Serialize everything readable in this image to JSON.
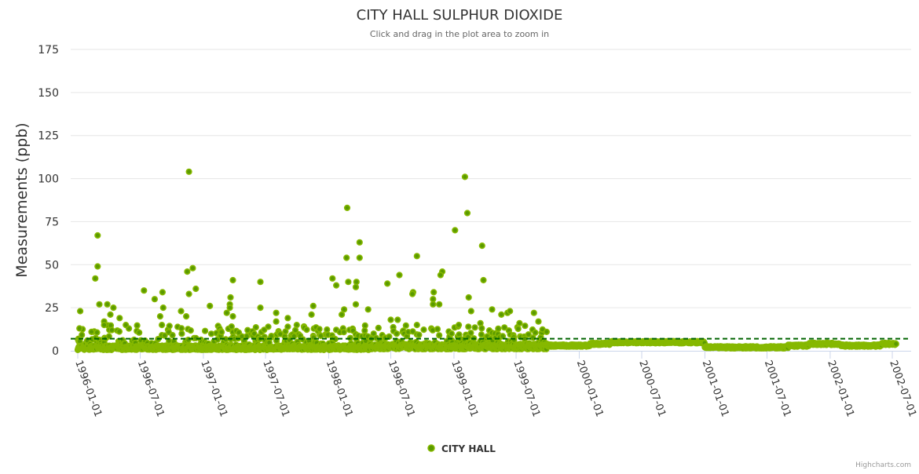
{
  "chart_data": {
    "type": "scatter",
    "title": "CITY HALL SULPHUR DIOXIDE",
    "subtitle": "Click and drag in the plot area to zoom in",
    "ylabel": "Measurements (ppb)",
    "xlabel": "",
    "ylim": [
      0,
      175
    ],
    "yticks": [
      0,
      25,
      50,
      75,
      100,
      125,
      150,
      175
    ],
    "xlim": [
      "1995-12-20",
      "2002-08-15"
    ],
    "xticks": [
      "1996-01-01",
      "1996-07-01",
      "1997-01-01",
      "1997-07-01",
      "1998-01-01",
      "1998-07-01",
      "1999-01-01",
      "1999-07-01",
      "2000-01-01",
      "2000-07-01",
      "2001-01-01",
      "2001-07-01",
      "2002-01-01",
      "2002-07-01"
    ],
    "grid": true,
    "legend": {
      "position": "bottom-center",
      "entries": [
        "CITY HALL"
      ]
    },
    "reference_line": {
      "value": 7,
      "style": "dashed",
      "color": "#006400"
    },
    "series": [
      {
        "name": "CITY HALL",
        "color": "#6aa500",
        "outliers": [
          [
            "1996-01-08",
            23
          ],
          [
            "1996-01-06",
            13
          ],
          [
            "1996-02-28",
            67
          ],
          [
            "1996-02-28",
            49
          ],
          [
            "1996-02-21",
            42
          ],
          [
            "1996-03-04",
            27
          ],
          [
            "1996-03-27",
            27
          ],
          [
            "1996-03-18",
            17
          ],
          [
            "1996-03-18",
            15
          ],
          [
            "1996-04-14",
            25
          ],
          [
            "1996-04-05",
            21
          ],
          [
            "1996-02-10",
            11
          ],
          [
            "1996-05-02",
            19
          ],
          [
            "1996-05-20",
            15
          ],
          [
            "1996-07-12",
            35
          ],
          [
            "1996-08-12",
            30
          ],
          [
            "1996-08-28",
            20
          ],
          [
            "1996-09-04",
            34
          ],
          [
            "1996-09-06",
            25
          ],
          [
            "1996-09-02",
            15
          ],
          [
            "1996-11-20",
            104
          ],
          [
            "1996-12-01",
            48
          ],
          [
            "1996-11-15",
            46
          ],
          [
            "1996-11-20",
            33
          ],
          [
            "1996-12-10",
            36
          ],
          [
            "1996-10-28",
            23
          ],
          [
            "1996-11-12",
            20
          ],
          [
            "1997-01-20",
            26
          ],
          [
            "1997-03-28",
            41
          ],
          [
            "1997-03-21",
            31
          ],
          [
            "1997-03-19",
            27
          ],
          [
            "1997-03-19",
            25
          ],
          [
            "1997-03-10",
            22
          ],
          [
            "1997-03-28",
            20
          ],
          [
            "1997-06-16",
            40
          ],
          [
            "1997-06-16",
            25
          ],
          [
            "1997-08-01",
            22
          ],
          [
            "1997-08-01",
            17
          ],
          [
            "1997-09-04",
            19
          ],
          [
            "1997-09-30",
            15
          ],
          [
            "1997-11-12",
            21
          ],
          [
            "1997-11-17",
            26
          ],
          [
            "1998-01-12",
            42
          ],
          [
            "1998-01-23",
            38
          ],
          [
            "1998-02-24",
            83
          ],
          [
            "1998-02-22",
            54
          ],
          [
            "1998-02-27",
            40
          ],
          [
            "1998-04-01",
            63
          ],
          [
            "1998-04-01",
            54
          ],
          [
            "1998-03-23",
            40
          ],
          [
            "1998-03-21",
            37
          ],
          [
            "1998-03-21",
            27
          ],
          [
            "1998-02-15",
            24
          ],
          [
            "1998-02-08",
            21
          ],
          [
            "1998-04-26",
            24
          ],
          [
            "1998-06-21",
            39
          ],
          [
            "1998-07-26",
            44
          ],
          [
            "1998-07-01",
            18
          ],
          [
            "1998-07-21",
            18
          ],
          [
            "1998-09-15",
            55
          ],
          [
            "1998-09-04",
            34
          ],
          [
            "1998-09-02",
            33
          ],
          [
            "1998-09-15",
            15
          ],
          [
            "1998-11-28",
            46
          ],
          [
            "1998-11-23",
            44
          ],
          [
            "1998-11-03",
            34
          ],
          [
            "1998-11-01",
            30
          ],
          [
            "1998-11-01",
            27
          ],
          [
            "1998-11-19",
            27
          ],
          [
            "1999-01-04",
            70
          ],
          [
            "1999-02-02",
            101
          ],
          [
            "1999-02-09",
            80
          ],
          [
            "1999-02-13",
            31
          ],
          [
            "1999-02-20",
            23
          ],
          [
            "1999-03-24",
            61
          ],
          [
            "1999-03-28",
            41
          ],
          [
            "1999-03-19",
            16
          ],
          [
            "1999-04-22",
            24
          ],
          [
            "1999-06-06",
            22
          ],
          [
            "1999-06-13",
            23
          ],
          [
            "1999-08-22",
            22
          ],
          [
            "1999-09-04",
            17
          ],
          [
            "1999-07-11",
            16
          ],
          [
            "1999-05-19",
            21
          ],
          [
            "1999-01-15",
            15
          ],
          [
            "1998-12-25",
            10
          ]
        ],
        "monthly_baseline": [
          2,
          2,
          2,
          2,
          2,
          2,
          2,
          2,
          2,
          2,
          2,
          2,
          2,
          2,
          2,
          2,
          2,
          2,
          2,
          2,
          2,
          2,
          2,
          2,
          2,
          2,
          2,
          2,
          3,
          3,
          3,
          3,
          3,
          3,
          3,
          3,
          3,
          3,
          3,
          3,
          3,
          3,
          3,
          3,
          3,
          3,
          3,
          3,
          3,
          4,
          4,
          5,
          5,
          5,
          5,
          5,
          5,
          5,
          5,
          5,
          2,
          2,
          2,
          2,
          2,
          2,
          2,
          2,
          3,
          3,
          4,
          4,
          4,
          3,
          3,
          3,
          3,
          4,
          4,
          5
        ],
        "baseline_start": "1996-01-01",
        "series_end": "2002-07-12",
        "variable_until": "1999-10-01"
      }
    ]
  },
  "credits": "Highcharts.com"
}
